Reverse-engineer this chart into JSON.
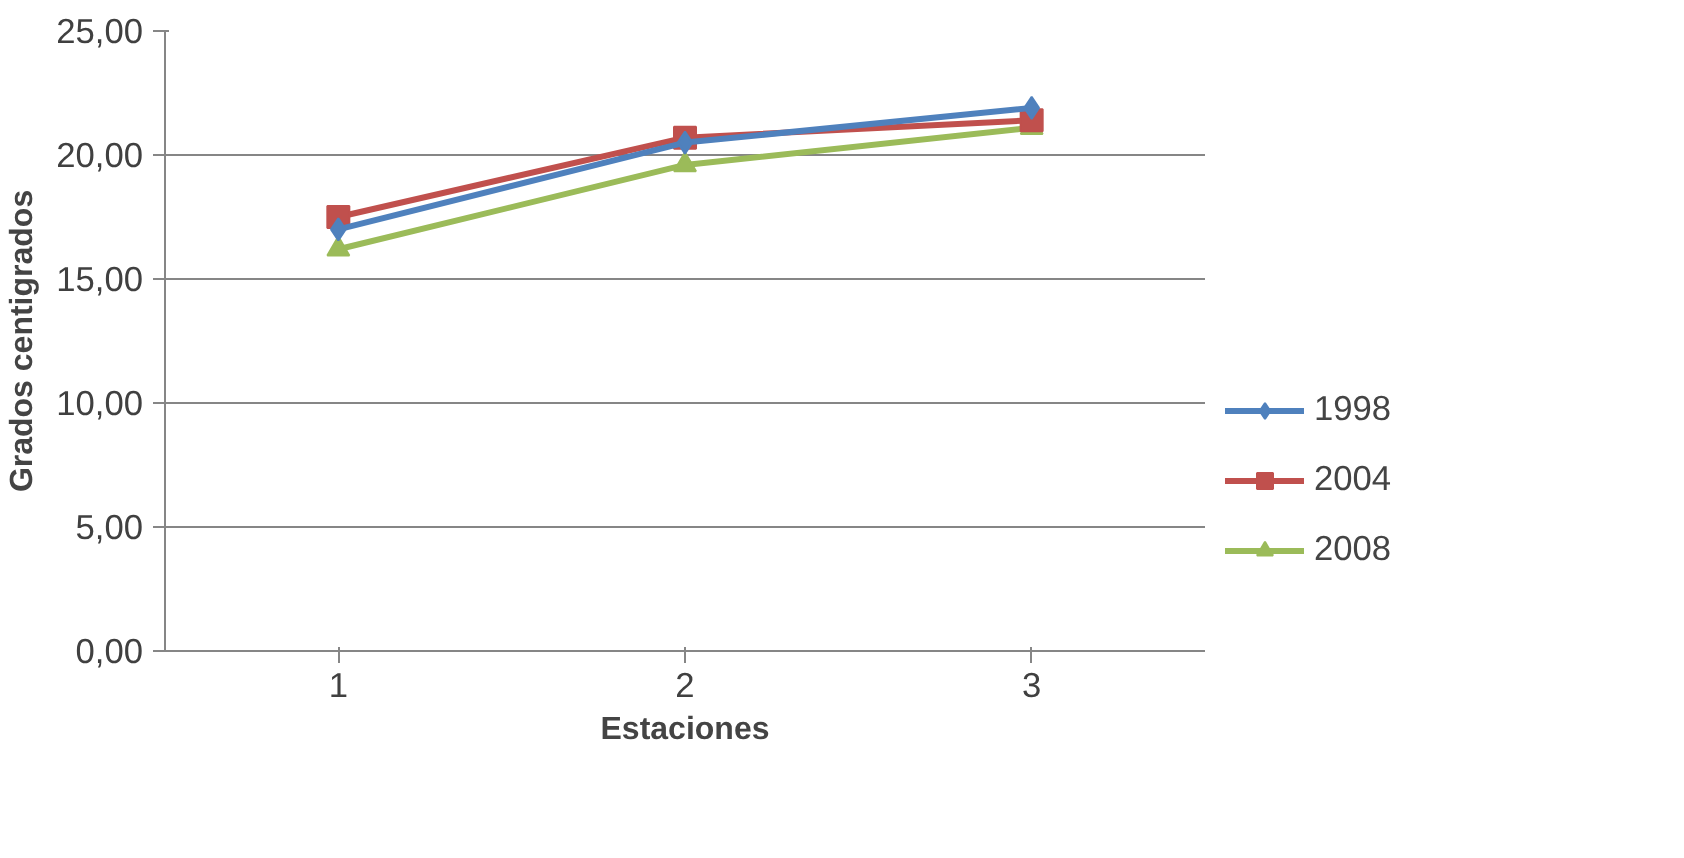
{
  "chart_data": {
    "type": "line",
    "xlabel": "Estaciones",
    "ylabel": "Grados centigrados",
    "categories": [
      "1",
      "2",
      "3"
    ],
    "series": [
      {
        "name": "1998",
        "color": "#4f81bd",
        "marker": "diamond",
        "values": [
          17.0,
          20.5,
          21.9
        ]
      },
      {
        "name": "2004",
        "color": "#c0504d",
        "marker": "square",
        "values": [
          17.5,
          20.7,
          21.4
        ]
      },
      {
        "name": "2008",
        "color": "#9bbb59",
        "marker": "triangle",
        "values": [
          16.2,
          19.6,
          21.1
        ]
      }
    ],
    "ylim": [
      0,
      25
    ],
    "yticks": [
      {
        "value": 0,
        "label": "0,00"
      },
      {
        "value": 5,
        "label": "5,00"
      },
      {
        "value": 10,
        "label": "10,00"
      },
      {
        "value": 15,
        "label": "15,00"
      },
      {
        "value": 20,
        "label": "20,00"
      },
      {
        "value": 25,
        "label": "25,00"
      }
    ],
    "grid": "y",
    "legend": "right",
    "line_style": "solid"
  }
}
